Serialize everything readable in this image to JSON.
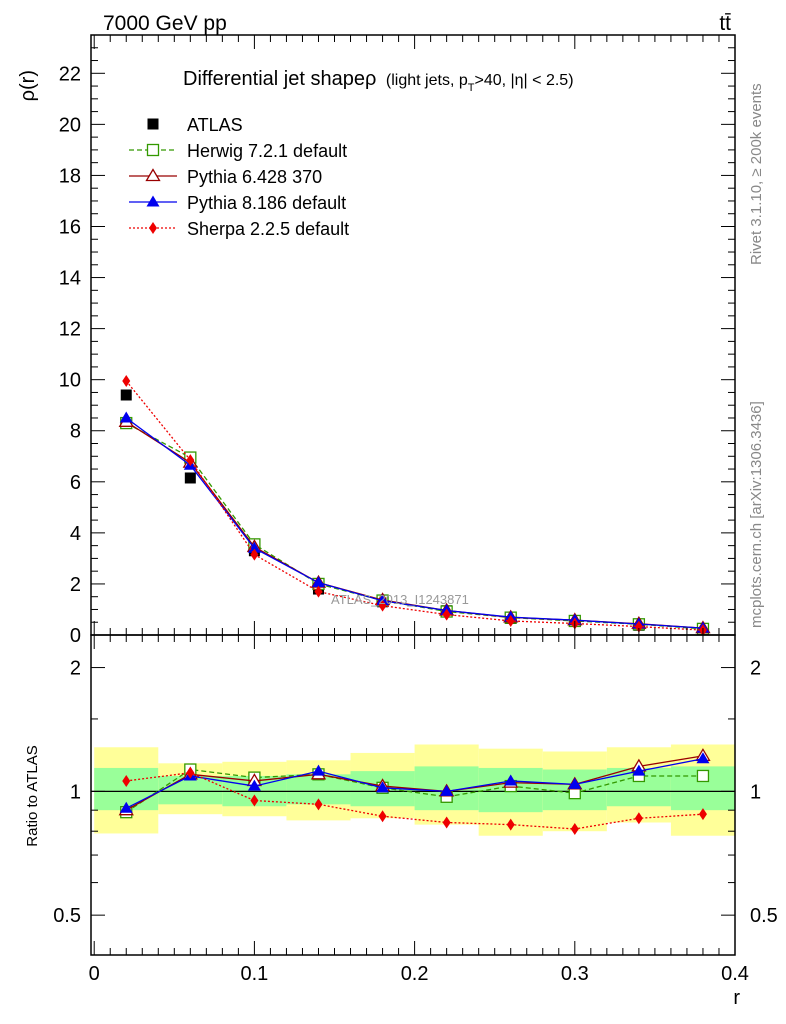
{
  "header": {
    "left": "7000 GeV pp",
    "right": "tt̄"
  },
  "side_text": {
    "rivet": "Rivet 3.1.10, ≥ 200k events",
    "mcplots": "mcplots.cern.ch [arXiv:1306.3436]"
  },
  "chart_data": [
    {
      "type": "line",
      "title": "Differential jet shape",
      "title_symbol": "ρ",
      "title_note": "(light jets, p",
      "title_note_sub": "T",
      "title_note_rest": ">40, |η| < 2.5)",
      "ylabel": "ρ(r)",
      "xlabel": "r",
      "xlim": [
        -0.002,
        0.4
      ],
      "ylim": [
        0,
        23.5
      ],
      "yticks": [
        0,
        2,
        4,
        6,
        8,
        10,
        12,
        14,
        16,
        18,
        20,
        22
      ],
      "watermark": "ATLAS_2013_I1243871",
      "legend_position": "top-left",
      "grid": false,
      "x": [
        0.02,
        0.06,
        0.1,
        0.14,
        0.18,
        0.22,
        0.26,
        0.3,
        0.34,
        0.38
      ],
      "series": [
        {
          "name": "ATLAS",
          "color": "#000000",
          "marker": "square-filled",
          "line": "none",
          "values": [
            9.4,
            6.15,
            3.3,
            1.8,
            1.3,
            0.95,
            0.65,
            0.55,
            0.38,
            0.22
          ]
        },
        {
          "name": "Herwig 7.2.1 default",
          "color": "#339900",
          "marker": "square-open",
          "line": "dashed",
          "values": [
            8.3,
            6.95,
            3.55,
            2.0,
            1.35,
            0.92,
            0.68,
            0.55,
            0.42,
            0.24
          ]
        },
        {
          "name": "Pythia 6.428 370",
          "color": "#990000",
          "marker": "triangle-open",
          "line": "solid",
          "values": [
            8.35,
            6.75,
            3.45,
            2.05,
            1.37,
            0.96,
            0.69,
            0.58,
            0.44,
            0.27
          ]
        },
        {
          "name": "Pythia 8.186 default",
          "color": "#0000ee",
          "marker": "triangle-filled",
          "line": "solid",
          "values": [
            8.5,
            6.65,
            3.4,
            2.05,
            1.34,
            0.96,
            0.7,
            0.58,
            0.43,
            0.27
          ]
        },
        {
          "name": "Sherpa 2.2.5 default",
          "color": "#ee0000",
          "marker": "diamond-filled",
          "line": "dotted",
          "values": [
            9.95,
            6.85,
            3.15,
            1.7,
            1.15,
            0.8,
            0.55,
            0.45,
            0.33,
            0.19
          ]
        }
      ]
    },
    {
      "type": "line",
      "ylabel": "Ratio to ATLAS",
      "xlabel": "r",
      "xlim": [
        -0.002,
        0.4
      ],
      "ylim": [
        0.4,
        2.4
      ],
      "yticks": [
        0.5,
        1,
        2
      ],
      "xticks": [
        0,
        0.1,
        0.2,
        0.3,
        0.4
      ],
      "x": [
        0.02,
        0.06,
        0.1,
        0.14,
        0.18,
        0.22,
        0.26,
        0.3,
        0.34,
        0.38
      ],
      "bands": {
        "outer_color": "#ffff99",
        "inner_color": "#99ff99",
        "outer_lo": [
          0.79,
          0.88,
          0.87,
          0.85,
          0.86,
          0.83,
          0.78,
          0.8,
          0.84,
          0.78
        ],
        "outer_hi": [
          1.28,
          1.17,
          1.18,
          1.19,
          1.24,
          1.3,
          1.27,
          1.25,
          1.28,
          1.3
        ],
        "inner_lo": [
          0.9,
          0.93,
          0.92,
          0.93,
          0.92,
          0.9,
          0.89,
          0.9,
          0.92,
          0.9
        ],
        "inner_hi": [
          1.14,
          1.09,
          1.09,
          1.1,
          1.12,
          1.15,
          1.14,
          1.13,
          1.14,
          1.15
        ]
      },
      "series": [
        {
          "name": "Herwig 7.2.1 default",
          "color": "#339900",
          "marker": "square-open",
          "line": "dashed",
          "values": [
            0.89,
            1.13,
            1.08,
            1.1,
            1.02,
            0.97,
            1.03,
            0.99,
            1.09,
            1.09
          ]
        },
        {
          "name": "Pythia 6.428 370",
          "color": "#990000",
          "marker": "triangle-open",
          "line": "solid",
          "values": [
            0.9,
            1.1,
            1.06,
            1.1,
            1.03,
            1.0,
            1.05,
            1.04,
            1.15,
            1.22
          ]
        },
        {
          "name": "Pythia 8.186 default",
          "color": "#0000ee",
          "marker": "triangle-filled",
          "line": "solid",
          "values": [
            0.91,
            1.09,
            1.03,
            1.12,
            1.02,
            1.0,
            1.06,
            1.04,
            1.12,
            1.2
          ]
        },
        {
          "name": "Sherpa 2.2.5 default",
          "color": "#ee0000",
          "marker": "diamond-filled",
          "line": "dotted",
          "values": [
            1.06,
            1.11,
            0.95,
            0.93,
            0.87,
            0.84,
            0.83,
            0.81,
            0.86,
            0.88
          ]
        }
      ]
    }
  ]
}
